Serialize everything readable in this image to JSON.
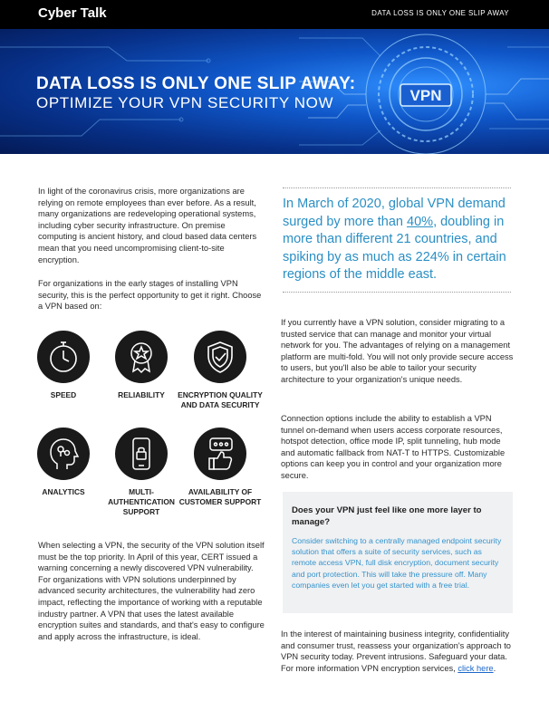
{
  "header": {
    "brand": "Cyber Talk",
    "tagline": "DATA LOSS IS ONLY ONE SLIP AWAY"
  },
  "hero": {
    "title": "DATA LOSS IS ONLY ONE SLIP AWAY:",
    "subtitle": "OPTIMIZE YOUR VPN SECURITY NOW",
    "badge": "VPN"
  },
  "left": {
    "para1": "In light of the coronavirus crisis, more organizations are relying on remote employees than ever before. As a result, many organizations are redeveloping operational systems, including cyber security infrastructure. On premise computing is ancient history, and cloud based data centers mean that you need uncompromising client-to-site encryption.",
    "para2": "For organizations in the early stages of installing VPN security, this is the perfect opportunity to get it right. Choose a VPN based on:",
    "features": [
      {
        "label": "SPEED",
        "icon": "stopwatch-icon"
      },
      {
        "label": "RELIABILITY",
        "icon": "award-badge-icon"
      },
      {
        "label": "ENCRYPTION QUALITY AND DATA SECURITY",
        "icon": "shield-check-icon"
      },
      {
        "label": "ANALYTICS",
        "icon": "head-brain-icon"
      },
      {
        "label": "MULTI-AUTHENTICATION SUPPORT",
        "icon": "phone-lock-icon"
      },
      {
        "label": "AVAILABILITY OF CUSTOMER SUPPORT",
        "icon": "thumbs-up-chat-icon"
      }
    ],
    "para3": "When selecting a VPN, the security of the VPN solution itself must be the top priority. In April of this year, CERT issued a warning concerning a newly discovered VPN vulnerability. For organizations with VPN solutions underpinned by advanced security architectures, the vulnerability had zero impact, reflecting the importance of working with a reputable industry partner. A VPN that uses the latest available encryption suites and standards, and that's easy to configure and apply across the infrastructure, is ideal."
  },
  "right": {
    "quote_before": "In March of 2020, global VPN demand surged by more than ",
    "quote_highlight": "40%",
    "quote_after": ", doubling in more than different 21 countries, and spiking by as much as 224% in certain regions of the middle east.",
    "para1": "If you currently have a VPN solution, consider migrating to a trusted service that can manage and monitor your virtual network for you. The advantages of relying on a management platform are multi-fold. You will not only provide secure access to users, but you'll also be able to tailor your security architecture to your organization's unique needs.",
    "para2": "Connection options include the ability to establish a VPN tunnel on-demand when users access corporate resources, hotspot detection, office mode IP, split tunneling, hub mode and automatic fallback from NAT-T to HTTPS. Customizable options can keep you in control and your organization more secure.",
    "callout_title": "Does your VPN just feel like one more layer to manage?",
    "callout_body": "Consider switching to a centrally managed endpoint security solution that offers a suite of security services, such as remote access VPN, full disk encryption, document security and port protection. This will take the pressure off. Many companies even let you get started with a free trial.",
    "para3": "In the interest of maintaining business integrity, confidentiality and consumer trust, reassess your organization's approach to VPN security today. Prevent intrusions. Safeguard your data. For more information VPN encryption services, ",
    "link": "click here",
    "para3_end": "."
  }
}
